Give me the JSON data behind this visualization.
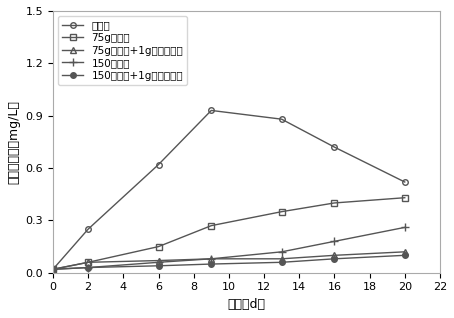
{
  "title": "",
  "xlabel": "时间（d）",
  "ylabel": "上覆水浓度（mg/L）",
  "xlim": [
    0,
    22
  ],
  "ylim": [
    0,
    1.5
  ],
  "xticks": [
    0,
    2,
    4,
    6,
    8,
    10,
    12,
    14,
    16,
    18,
    20,
    22
  ],
  "yticks": [
    0.0,
    0.3,
    0.6,
    0.9,
    1.2,
    1.5
  ],
  "series": [
    {
      "label": "对照组",
      "x": [
        0,
        2,
        6,
        9,
        13,
        16,
        20
      ],
      "y": [
        0.02,
        0.25,
        0.62,
        0.93,
        0.88,
        0.72,
        0.52
      ],
      "marker": "o",
      "color": "#555555",
      "linewidth": 1.0,
      "markersize": 4,
      "fillstyle": "none"
    },
    {
      "label": "75g方解石",
      "x": [
        0,
        2,
        6,
        9,
        13,
        16,
        20
      ],
      "y": [
        0.02,
        0.06,
        0.15,
        0.27,
        0.35,
        0.4,
        0.43
      ],
      "marker": "s",
      "color": "#555555",
      "linewidth": 1.0,
      "markersize": 4,
      "fillstyle": "none"
    },
    {
      "label": "75g方解石+1g羟基磷灰石",
      "x": [
        0,
        2,
        6,
        9,
        13,
        16,
        20
      ],
      "y": [
        0.02,
        0.06,
        0.07,
        0.08,
        0.08,
        0.1,
        0.12
      ],
      "marker": "^",
      "color": "#555555",
      "linewidth": 1.0,
      "markersize": 4,
      "fillstyle": "none"
    },
    {
      "label": "150方解石",
      "x": [
        0,
        2,
        6,
        9,
        13,
        16,
        20
      ],
      "y": [
        0.02,
        0.03,
        0.06,
        0.08,
        0.12,
        0.18,
        0.26
      ],
      "marker": "+",
      "color": "#555555",
      "linewidth": 1.0,
      "markersize": 6,
      "fillstyle": "full"
    },
    {
      "label": "150方解石+1g羟基磷灰石",
      "x": [
        0,
        2,
        6,
        9,
        13,
        16,
        20
      ],
      "y": [
        0.02,
        0.03,
        0.04,
        0.05,
        0.06,
        0.08,
        0.1
      ],
      "marker": "o",
      "color": "#555555",
      "linewidth": 1.0,
      "markersize": 4,
      "fillstyle": "full"
    }
  ],
  "legend_fontsize": 7.5,
  "axis_fontsize": 9,
  "tick_fontsize": 8,
  "background_color": "#ffffff"
}
